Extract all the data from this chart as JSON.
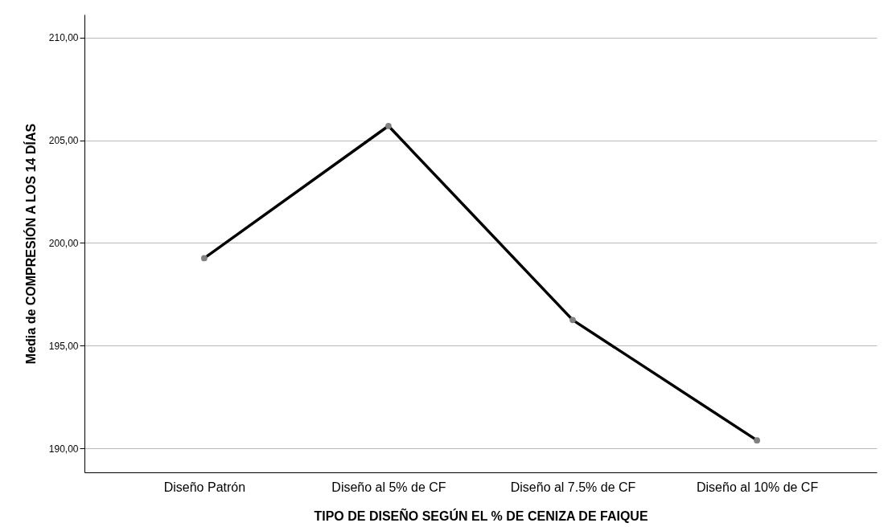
{
  "chart_data": {
    "type": "line",
    "xlabel": "TIPO DE DISEÑO SEGÚN EL % DE CENIZA DE FAIQUE",
    "ylabel": "Media de COMPRESIÓN A LOS 14 DÍAS",
    "categories": [
      "Diseño Patrón",
      "Diseño al 5% de CF",
      "Diseño al 7.5% de CF",
      "Diseño al 10% de CF"
    ],
    "series": [
      {
        "color": "#000000",
        "values": [
          199.26,
          205.7,
          196.25,
          190.39
        ]
      }
    ],
    "ylim": [
      188.83,
      211.13
    ],
    "yticks": [
      {
        "value": 190,
        "label": "190,00"
      },
      {
        "value": 195,
        "label": "195,00"
      },
      {
        "value": 200,
        "label": "200,00"
      },
      {
        "value": 205,
        "label": "205,00"
      },
      {
        "value": 210,
        "label": "210,00"
      }
    ],
    "grid": "y",
    "marker": "circle",
    "line_style": "solid"
  }
}
